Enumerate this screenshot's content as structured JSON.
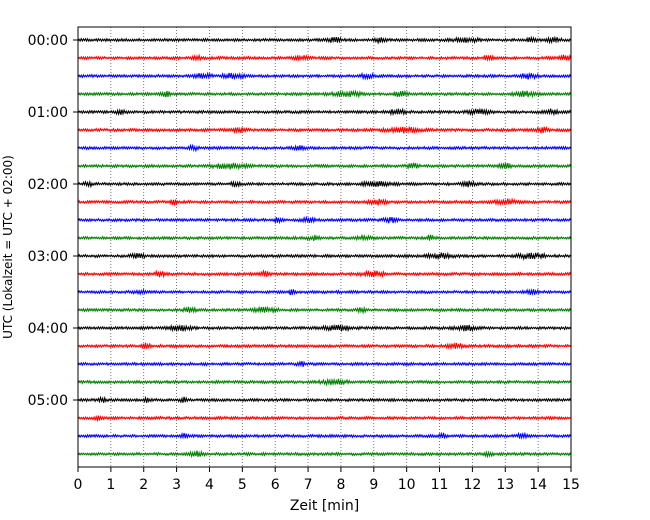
{
  "chart_data": {
    "type": "line",
    "title": "",
    "xlabel": "Zeit  [min]",
    "ylabel": "UTC (Lokalzeit = UTC + 02:00)",
    "xlim": [
      0,
      15
    ],
    "x_ticks": [
      "0",
      "1",
      "2",
      "3",
      "4",
      "5",
      "6",
      "7",
      "8",
      "9",
      "10",
      "11",
      "12",
      "13",
      "14",
      "15"
    ],
    "y_tick_labels": [
      "00:00",
      "01:00",
      "02:00",
      "03:00",
      "04:00",
      "05:00"
    ],
    "y_tick_traces": [
      0,
      4,
      8,
      12,
      16,
      20
    ],
    "grid": "vertical dotted",
    "minutes_per_line": 15,
    "trace_count": 24,
    "trace_colors": [
      "#000000",
      "#ff0000",
      "#0000ff",
      "#008000"
    ],
    "series": [
      {
        "start": "00:00",
        "color": "#000000",
        "bursts": [
          [
            7.8,
            0.3
          ],
          [
            9.2,
            0.25
          ],
          [
            11.8,
            0.6
          ],
          [
            13.8,
            0.2
          ],
          [
            14.5,
            0.3
          ]
        ]
      },
      {
        "start": "00:15",
        "color": "#ff0000",
        "bursts": [
          [
            3.6,
            0.2
          ],
          [
            6.8,
            0.3
          ],
          [
            12.5,
            0.2
          ],
          [
            14.8,
            0.3
          ]
        ]
      },
      {
        "start": "00:30",
        "color": "#0000ff",
        "bursts": [
          [
            3.8,
            0.4
          ],
          [
            4.7,
            0.5
          ],
          [
            8.8,
            0.3
          ],
          [
            13.7,
            0.4
          ]
        ]
      },
      {
        "start": "00:45",
        "color": "#008000",
        "bursts": [
          [
            2.7,
            0.3
          ],
          [
            8.2,
            0.7
          ],
          [
            9.8,
            0.3
          ],
          [
            13.6,
            0.5
          ]
        ]
      },
      {
        "start": "01:00",
        "color": "#000000",
        "bursts": [
          [
            1.3,
            0.25
          ],
          [
            9.7,
            0.4
          ],
          [
            12.2,
            0.5
          ],
          [
            14.4,
            0.3
          ]
        ]
      },
      {
        "start": "01:15",
        "color": "#ff0000",
        "bursts": [
          [
            4.9,
            0.25
          ],
          [
            9.9,
            0.8
          ],
          [
            14.1,
            0.3
          ]
        ]
      },
      {
        "start": "01:30",
        "color": "#0000ff",
        "bursts": [
          [
            3.5,
            0.2
          ],
          [
            6.7,
            0.25
          ]
        ]
      },
      {
        "start": "01:45",
        "color": "#008000",
        "bursts": [
          [
            4.6,
            0.8
          ],
          [
            10.2,
            0.3
          ],
          [
            13.0,
            0.3
          ]
        ]
      },
      {
        "start": "02:00",
        "color": "#000000",
        "bursts": [
          [
            0.3,
            0.2
          ],
          [
            4.8,
            0.25
          ],
          [
            9.1,
            0.7
          ],
          [
            11.9,
            0.3
          ]
        ]
      },
      {
        "start": "02:15",
        "color": "#ff0000",
        "bursts": [
          [
            2.9,
            0.2
          ],
          [
            9.1,
            0.4
          ],
          [
            13.0,
            0.5
          ]
        ]
      },
      {
        "start": "02:30",
        "color": "#0000ff",
        "bursts": [
          [
            6.1,
            0.2
          ],
          [
            7.0,
            0.3
          ],
          [
            9.5,
            0.3
          ]
        ]
      },
      {
        "start": "02:45",
        "color": "#008000",
        "bursts": [
          [
            7.2,
            0.3
          ],
          [
            8.7,
            0.3
          ],
          [
            10.7,
            0.2
          ]
        ]
      },
      {
        "start": "03:00",
        "color": "#000000",
        "bursts": [
          [
            1.8,
            0.3
          ],
          [
            11.0,
            0.6
          ],
          [
            13.8,
            0.7
          ]
        ]
      },
      {
        "start": "03:15",
        "color": "#ff0000",
        "bursts": [
          [
            2.5,
            0.3
          ],
          [
            5.7,
            0.2
          ],
          [
            9.0,
            0.6
          ]
        ]
      },
      {
        "start": "03:30",
        "color": "#0000ff",
        "bursts": [
          [
            1.9,
            0.25
          ],
          [
            6.5,
            0.2
          ],
          [
            13.8,
            0.3
          ]
        ]
      },
      {
        "start": "03:45",
        "color": "#008000",
        "bursts": [
          [
            3.4,
            0.3
          ],
          [
            5.7,
            0.5
          ],
          [
            8.6,
            0.2
          ]
        ]
      },
      {
        "start": "04:00",
        "color": "#000000",
        "bursts": [
          [
            3.1,
            0.5
          ],
          [
            7.9,
            0.7
          ],
          [
            11.8,
            0.5
          ]
        ]
      },
      {
        "start": "04:15",
        "color": "#ff0000",
        "bursts": [
          [
            2.1,
            0.2
          ],
          [
            11.5,
            0.4
          ]
        ]
      },
      {
        "start": "04:30",
        "color": "#0000ff",
        "bursts": [
          [
            6.8,
            0.2
          ]
        ]
      },
      {
        "start": "04:45",
        "color": "#008000",
        "bursts": [
          [
            7.8,
            0.6
          ]
        ]
      },
      {
        "start": "05:00",
        "color": "#000000",
        "bursts": [
          [
            0.75,
            0.15
          ],
          [
            2.1,
            0.1
          ],
          [
            3.2,
            0.15
          ]
        ]
      },
      {
        "start": "05:15",
        "color": "#ff0000",
        "bursts": [
          [
            0.6,
            0.15
          ]
        ]
      },
      {
        "start": "05:30",
        "color": "#0000ff",
        "bursts": [
          [
            3.2,
            0.2
          ],
          [
            11.1,
            0.15
          ],
          [
            13.5,
            0.2
          ]
        ]
      },
      {
        "start": "05:45",
        "color": "#008000",
        "bursts": [
          [
            3.6,
            0.3
          ],
          [
            12.5,
            0.2
          ]
        ]
      }
    ]
  }
}
